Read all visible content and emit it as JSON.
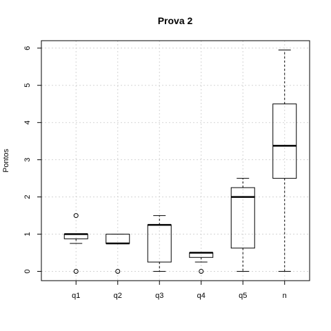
{
  "chart_data": {
    "type": "boxplot",
    "title": "Prova 2",
    "xlabel": "",
    "ylabel": "Pontos",
    "ylim": [
      -0.25,
      6.2
    ],
    "yticks": [
      0,
      1,
      2,
      3,
      4,
      5,
      6
    ],
    "grid": true,
    "categories": [
      "q1",
      "q2",
      "q3",
      "q4",
      "q5",
      "n"
    ],
    "boxes": [
      {
        "name": "q1",
        "whisker_low": 0.75,
        "q1": 0.875,
        "median": 1.0,
        "q3": 1.0,
        "whisker_high": 1.0,
        "outliers": [
          1.5,
          0.0
        ]
      },
      {
        "name": "q2",
        "whisker_low": 0.75,
        "q1": 0.75,
        "median": 0.75,
        "q3": 1.0,
        "whisker_high": 1.0,
        "outliers": [
          0.0
        ]
      },
      {
        "name": "q3",
        "whisker_low": 0.0,
        "q1": 0.25,
        "median": 1.25,
        "q3": 1.25,
        "whisker_high": 1.5,
        "outliers": []
      },
      {
        "name": "q4",
        "whisker_low": 0.25,
        "q1": 0.375,
        "median": 0.5,
        "q3": 0.5,
        "whisker_high": 0.5,
        "outliers": [
          0.0
        ]
      },
      {
        "name": "q5",
        "whisker_low": 0.0,
        "q1": 0.625,
        "median": 2.0,
        "q3": 2.25,
        "whisker_high": 2.5,
        "outliers": []
      },
      {
        "name": "n",
        "whisker_low": 0.0,
        "q1": 2.5,
        "median": 3.375,
        "q3": 4.5,
        "whisker_high": 5.95,
        "outliers": []
      }
    ]
  }
}
